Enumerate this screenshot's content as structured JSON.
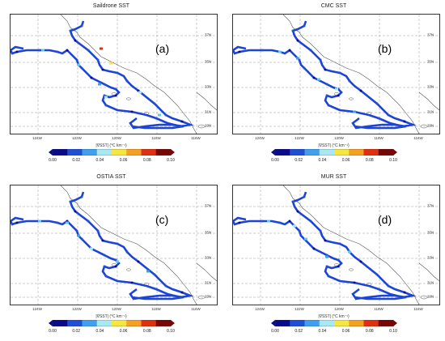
{
  "colorbar": {
    "label": "|∇SST| (°C km⁻¹)",
    "ticks": [
      "0.00",
      "0.02",
      "0.04",
      "0.06",
      "0.08",
      "0.10"
    ],
    "range": [
      0.0,
      0.1
    ],
    "colors": [
      "#0a0a8c",
      "#1f4fd8",
      "#3fa0f0",
      "#a8e8f5",
      "#f6e640",
      "#f5a020",
      "#e03010",
      "#7a0505"
    ]
  },
  "axes": {
    "x_ticks": [
      "124W",
      "122W",
      "120W",
      "118W",
      "116W"
    ],
    "y_ticks": [
      "37N",
      "35N",
      "33N",
      "31N",
      "29N"
    ]
  },
  "panels": [
    {
      "title": "Saildrone SST",
      "label": "(a)"
    },
    {
      "title": "CMC SST",
      "label": "(b)"
    },
    {
      "title": "OSTIA SST",
      "label": "(c)"
    },
    {
      "title": "MUR SST",
      "label": "(d)"
    }
  ],
  "colors": {
    "track_base": "#1c44d6",
    "track_light": "#5ec9f0",
    "coast": "#555555",
    "grid": "#9a9a9a"
  }
}
